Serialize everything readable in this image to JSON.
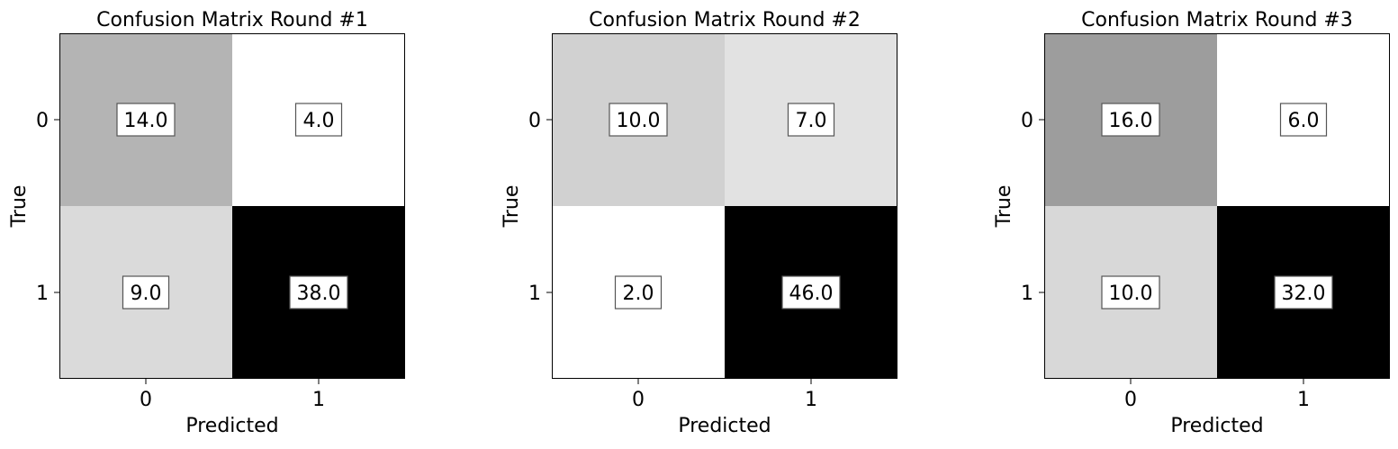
{
  "chart_data": [
    {
      "type": "heatmap",
      "title": "Confusion Matrix Round #1",
      "xlabel": "Predicted",
      "ylabel": "True",
      "x_categories": [
        "0",
        "1"
      ],
      "y_categories": [
        "0",
        "1"
      ],
      "values": [
        [
          14.0,
          4.0
        ],
        [
          9.0,
          38.0
        ]
      ],
      "value_labels": [
        [
          "14.0",
          "4.0"
        ],
        [
          "9.0",
          "38.0"
        ]
      ],
      "colormap": "greys",
      "grid": false
    },
    {
      "type": "heatmap",
      "title": "Confusion Matrix Round #2",
      "xlabel": "Predicted",
      "ylabel": "True",
      "x_categories": [
        "0",
        "1"
      ],
      "y_categories": [
        "0",
        "1"
      ],
      "values": [
        [
          10.0,
          7.0
        ],
        [
          2.0,
          46.0
        ]
      ],
      "value_labels": [
        [
          "10.0",
          "7.0"
        ],
        [
          "2.0",
          "46.0"
        ]
      ],
      "colormap": "greys",
      "grid": false
    },
    {
      "type": "heatmap",
      "title": "Confusion Matrix Round #3",
      "xlabel": "Predicted",
      "ylabel": "True",
      "x_categories": [
        "0",
        "1"
      ],
      "y_categories": [
        "0",
        "1"
      ],
      "values": [
        [
          16.0,
          6.0
        ],
        [
          10.0,
          32.0
        ]
      ],
      "value_labels": [
        [
          "16.0",
          "6.0"
        ],
        [
          "10.0",
          "32.0"
        ]
      ],
      "colormap": "greys",
      "grid": false
    }
  ]
}
